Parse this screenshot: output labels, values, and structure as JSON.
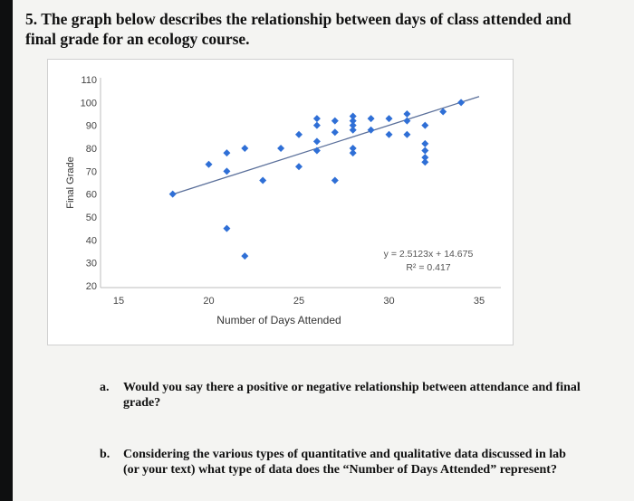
{
  "question": {
    "number": "5.",
    "text": "The graph below describes the relationship between days of class attended and final grade for an ecology course."
  },
  "chart_data": {
    "type": "scatter",
    "xlabel": "Number of Days Attended",
    "ylabel": "Final Grade",
    "xlim": [
      15,
      35
    ],
    "ylim": [
      20,
      110
    ],
    "xticks": [
      15,
      20,
      25,
      30,
      35
    ],
    "yticks": [
      20,
      30,
      40,
      50,
      60,
      70,
      80,
      90,
      100,
      110
    ],
    "grid": false,
    "marker_color": "#2f6fd6",
    "trendline_color": "#5a6f9a",
    "trendline": {
      "slope": 2.5123,
      "intercept": 14.675,
      "x_range": [
        18,
        35
      ]
    },
    "annotation": {
      "equation": "y = 2.5123x + 14.675",
      "r2": "R² = 0.417"
    },
    "points": [
      {
        "x": 18,
        "y": 60
      },
      {
        "x": 20,
        "y": 73
      },
      {
        "x": 21,
        "y": 78
      },
      {
        "x": 21,
        "y": 70
      },
      {
        "x": 21,
        "y": 45
      },
      {
        "x": 22,
        "y": 80
      },
      {
        "x": 22,
        "y": 33
      },
      {
        "x": 23,
        "y": 66
      },
      {
        "x": 24,
        "y": 80
      },
      {
        "x": 25,
        "y": 86
      },
      {
        "x": 25,
        "y": 72
      },
      {
        "x": 26,
        "y": 90
      },
      {
        "x": 26,
        "y": 93
      },
      {
        "x": 26,
        "y": 83
      },
      {
        "x": 26,
        "y": 79
      },
      {
        "x": 27,
        "y": 87
      },
      {
        "x": 27,
        "y": 92
      },
      {
        "x": 27,
        "y": 66
      },
      {
        "x": 28,
        "y": 88
      },
      {
        "x": 28,
        "y": 90
      },
      {
        "x": 28,
        "y": 92
      },
      {
        "x": 28,
        "y": 94
      },
      {
        "x": 28,
        "y": 80
      },
      {
        "x": 28,
        "y": 78
      },
      {
        "x": 29,
        "y": 93
      },
      {
        "x": 29,
        "y": 88
      },
      {
        "x": 30,
        "y": 93
      },
      {
        "x": 30,
        "y": 86
      },
      {
        "x": 31,
        "y": 92
      },
      {
        "x": 31,
        "y": 95
      },
      {
        "x": 31,
        "y": 86
      },
      {
        "x": 32,
        "y": 82
      },
      {
        "x": 32,
        "y": 79
      },
      {
        "x": 32,
        "y": 76
      },
      {
        "x": 32,
        "y": 74
      },
      {
        "x": 32,
        "y": 90
      },
      {
        "x": 33,
        "y": 96
      },
      {
        "x": 34,
        "y": 100
      }
    ]
  },
  "sub_questions": [
    {
      "label": "a.",
      "text": "Would you say there a positive or negative relationship between attendance and final grade?"
    },
    {
      "label": "b.",
      "text": "Considering the various types of quantitative and qualitative data discussed in lab (or your text) what type of data does the “Number of Days Attended” represent?"
    }
  ]
}
